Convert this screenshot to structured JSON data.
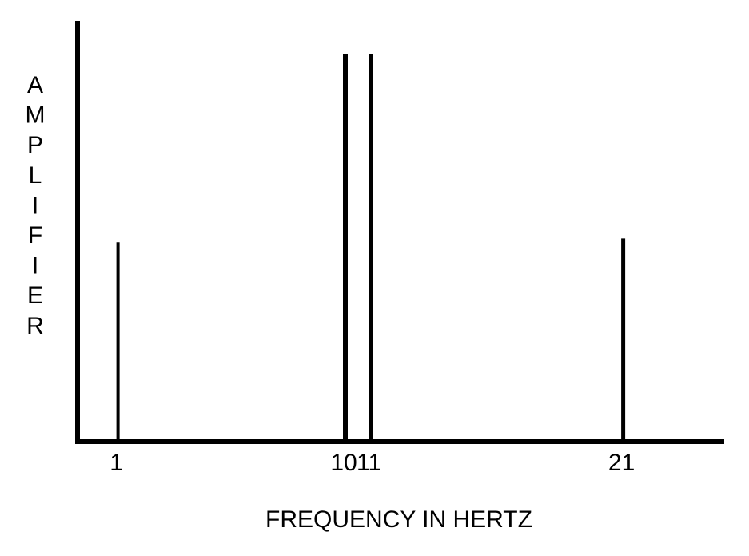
{
  "chart_data": {
    "type": "bar",
    "title": "",
    "xlabel": "FREQUENCY IN HERTZ",
    "ylabel": "AMPLIFIER",
    "x": [
      1,
      10,
      11,
      21
    ],
    "values": [
      0.51,
      1.0,
      1.0,
      0.52
    ],
    "tick_labels": [
      "1",
      "10",
      "11",
      "21"
    ],
    "xlim": [
      0,
      22.7
    ],
    "ylim": [
      0,
      1.05
    ],
    "grid": false,
    "legend": "none",
    "colors": {
      "line": "#000000",
      "background": "#ffffff"
    }
  }
}
